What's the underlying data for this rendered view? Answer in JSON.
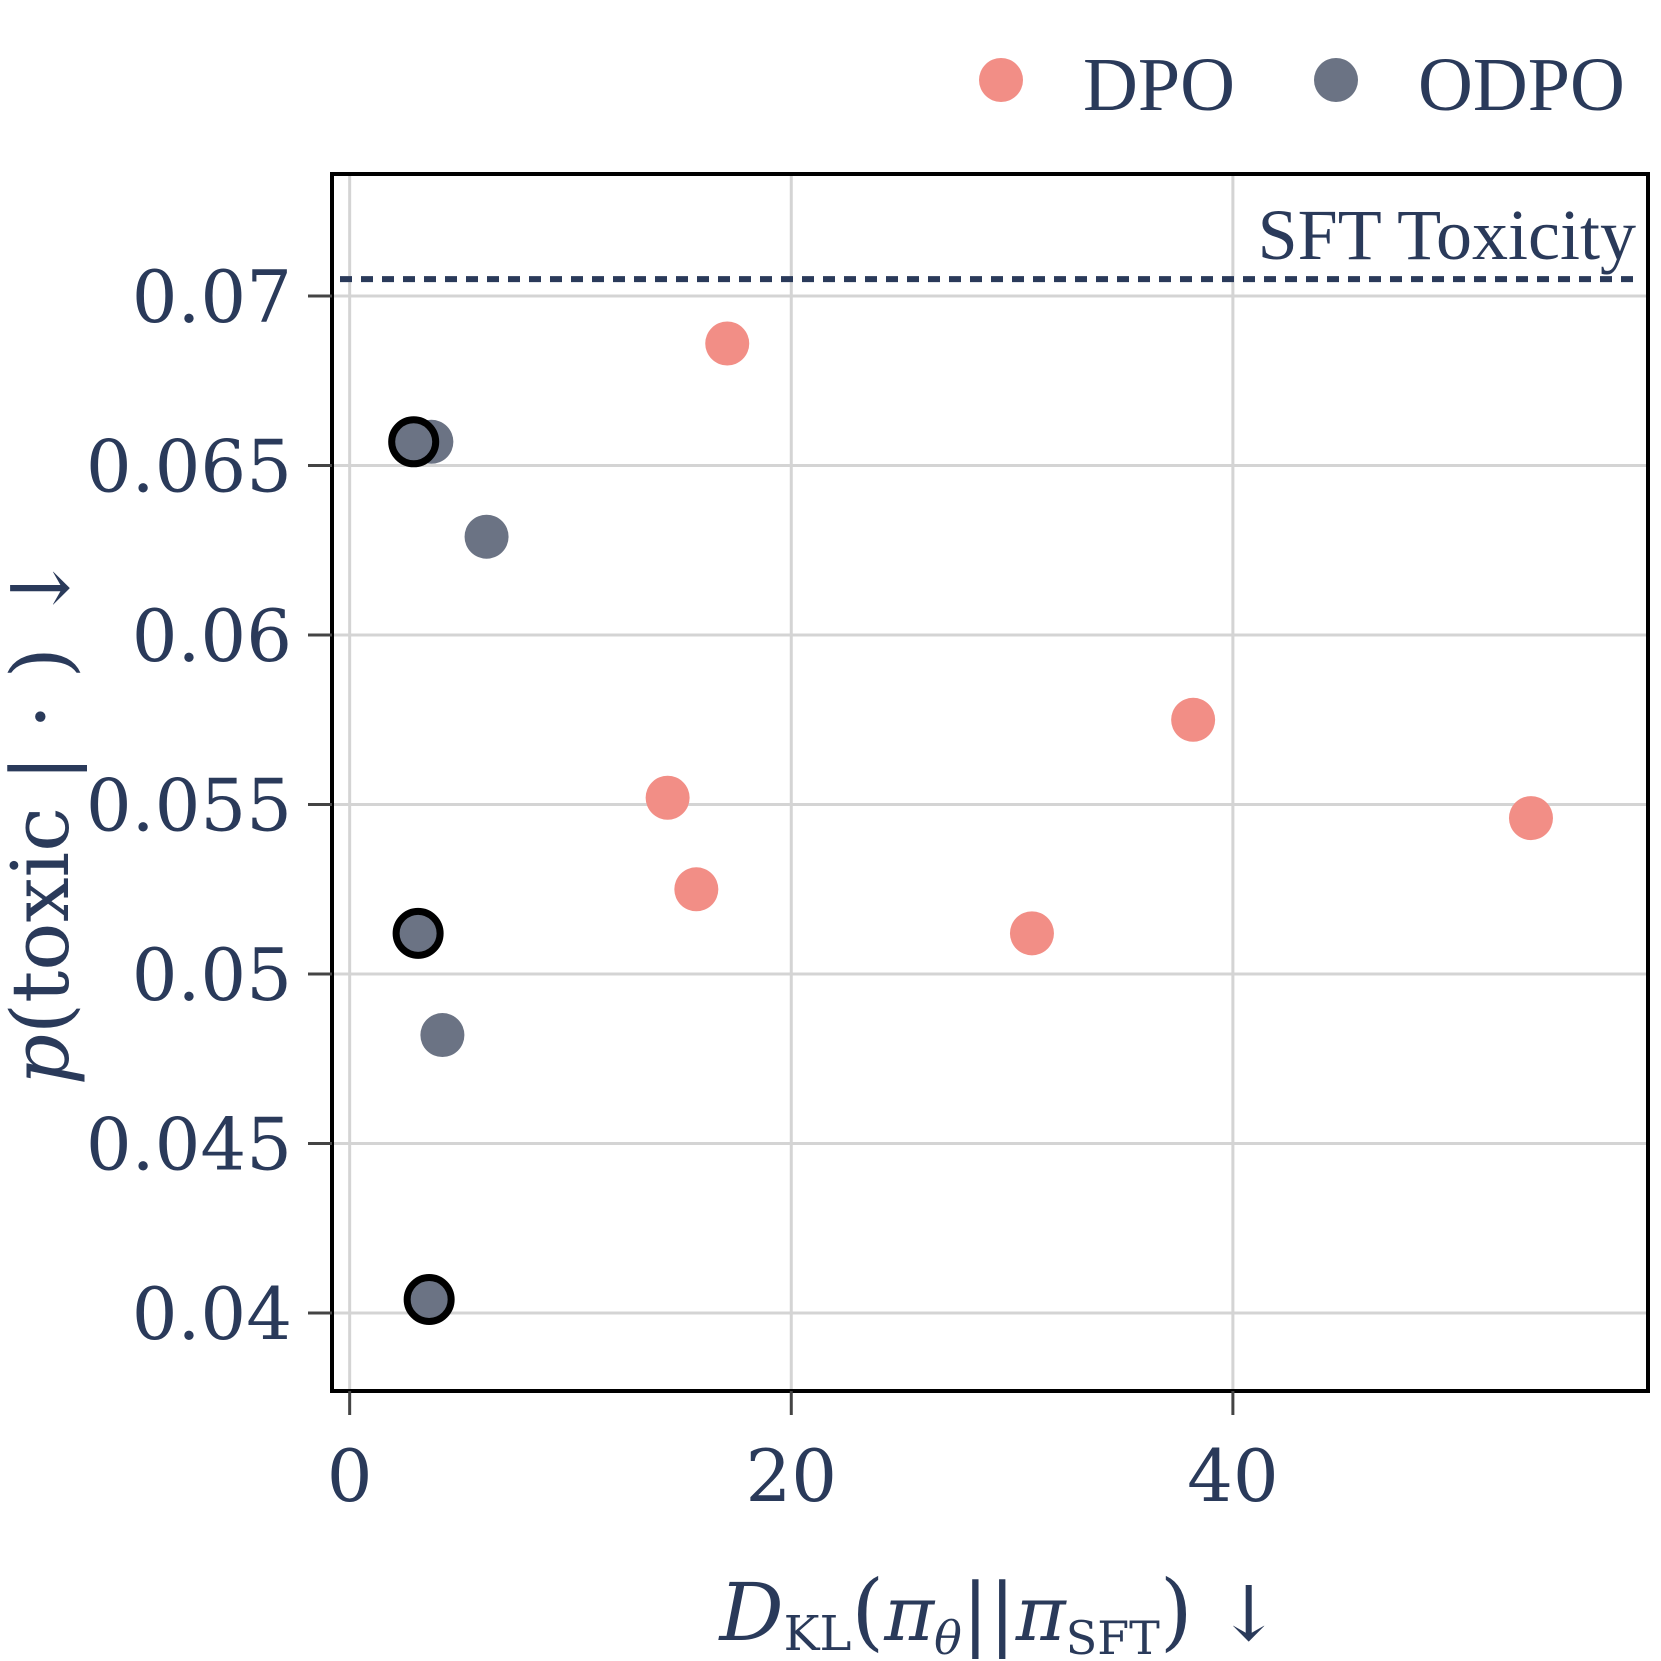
{
  "chart_data": {
    "type": "scatter",
    "xlabel": "D_KL(π_θ || π_SFT) ↓",
    "ylabel": "p(toxic | ·) ↓",
    "xlim": [
      -0.8,
      58.8
    ],
    "ylim": [
      0.0377,
      0.0736
    ],
    "x_ticks": [
      0,
      20,
      40
    ],
    "x_tick_labels": [
      "0",
      "20",
      "40"
    ],
    "y_ticks": [
      0.04,
      0.045,
      0.05,
      0.055,
      0.06,
      0.065,
      0.07
    ],
    "y_tick_labels": [
      "0.04",
      "0.045",
      "0.05",
      "0.055",
      "0.06",
      "0.065",
      "0.07"
    ],
    "grid": true,
    "legend": {
      "position": "top-right",
      "entries": [
        "DPO",
        "ODPO"
      ]
    },
    "reference_line": {
      "y": 0.0705,
      "label": "SFT Toxicity",
      "style": "dotted"
    },
    "series": [
      {
        "name": "DPO",
        "color": "#f28e86",
        "points": [
          {
            "x": 17.1,
            "y": 0.0686
          },
          {
            "x": 14.4,
            "y": 0.0552
          },
          {
            "x": 15.7,
            "y": 0.0525
          },
          {
            "x": 30.9,
            "y": 0.0512
          },
          {
            "x": 38.2,
            "y": 0.0575
          },
          {
            "x": 53.5,
            "y": 0.0546
          }
        ]
      },
      {
        "name": "ODPO",
        "color": "#6b7384",
        "points": [
          {
            "x": 3.7,
            "y": 0.0657,
            "highlight": false
          },
          {
            "x": 2.9,
            "y": 0.0657,
            "highlight": true
          },
          {
            "x": 6.2,
            "y": 0.0629,
            "highlight": false
          },
          {
            "x": 3.1,
            "y": 0.0512,
            "highlight": true
          },
          {
            "x": 4.2,
            "y": 0.0482,
            "highlight": false
          },
          {
            "x": 3.6,
            "y": 0.0404,
            "highlight": true
          }
        ]
      }
    ]
  }
}
